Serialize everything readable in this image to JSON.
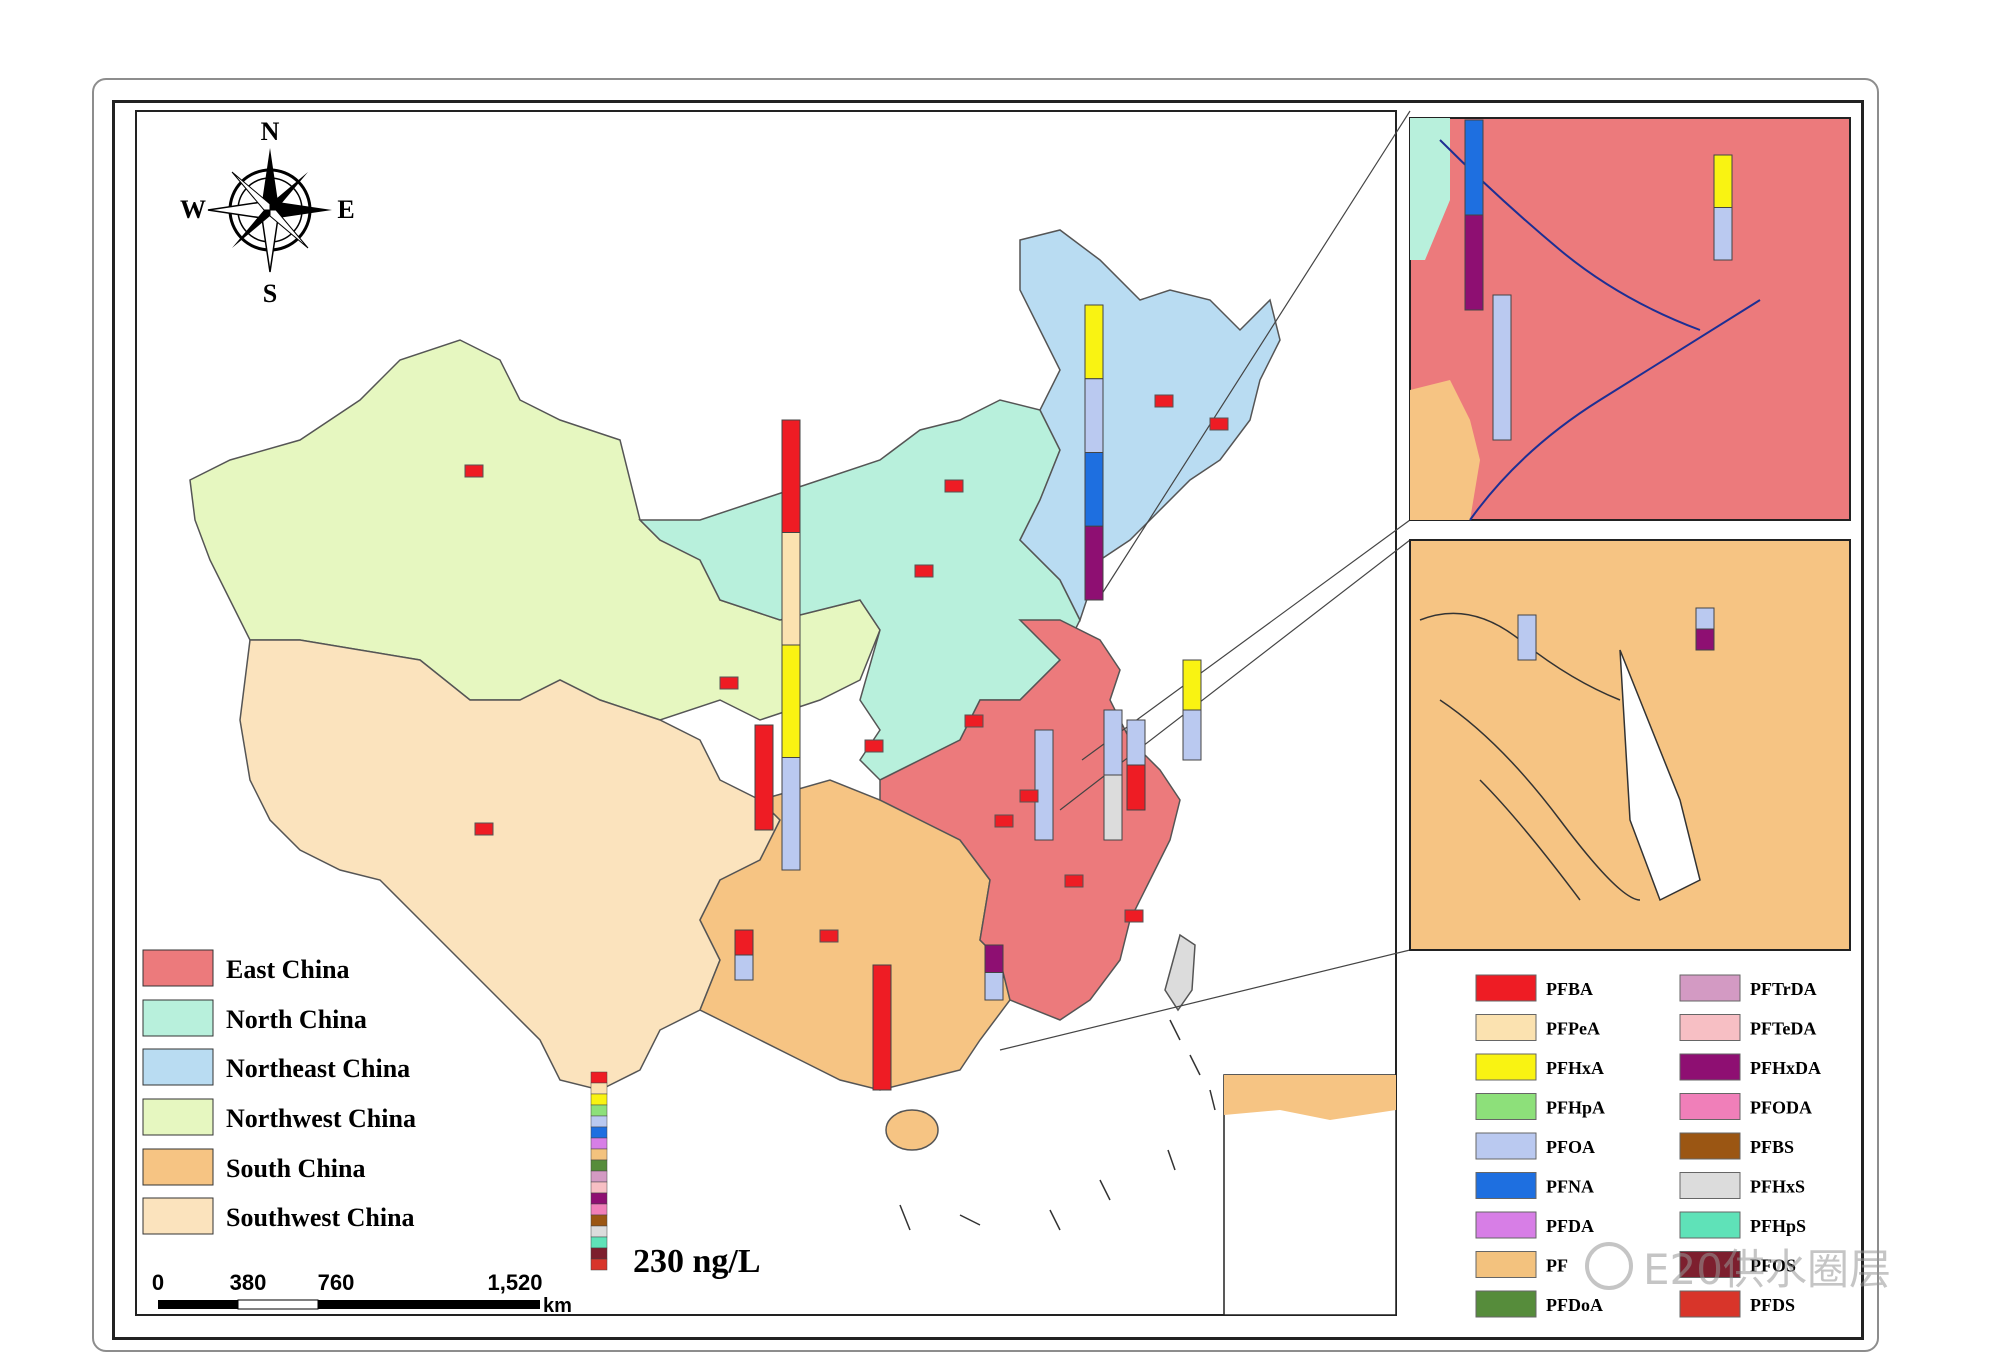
{
  "compass": {
    "n": "N",
    "s": "S",
    "e": "E",
    "w": "W"
  },
  "regions": [
    {
      "name": "East China",
      "color": "#ec7a7c"
    },
    {
      "name": "North China",
      "color": "#b8f0dc"
    },
    {
      "name": "Northeast China",
      "color": "#b9dcf2"
    },
    {
      "name": "Northwest China",
      "color": "#e6f7c0"
    },
    {
      "name": "South China",
      "color": "#f6c483"
    },
    {
      "name": "Southwest China",
      "color": "#fbe3bd"
    }
  ],
  "compounds_left": [
    {
      "name": "PFBA",
      "color": "#ee1c24"
    },
    {
      "name": "PFPeA",
      "color": "#fbe2b0"
    },
    {
      "name": "PFHxA",
      "color": "#f9f312"
    },
    {
      "name": "PFHpA",
      "color": "#8de07a"
    },
    {
      "name": "PFOA",
      "color": "#bac9f0"
    },
    {
      "name": "PFNA",
      "color": "#1e6fe0"
    },
    {
      "name": "PFDA",
      "color": "#d77ee6"
    },
    {
      "name": "PF",
      "color": "#f3c27e"
    },
    {
      "name": "PFDoA",
      "color": "#568c3b"
    }
  ],
  "compounds_right": [
    {
      "name": "PFTrDA",
      "color": "#d39ac3"
    },
    {
      "name": "PFTeDA",
      "color": "#f7bfc4"
    },
    {
      "name": "PFHxDA",
      "color": "#8e0f72"
    },
    {
      "name": "PFODA",
      "color": "#f07fb9"
    },
    {
      "name": "PFBS",
      "color": "#9b5613"
    },
    {
      "name": "PFHxS",
      "color": "#dcdcdc"
    },
    {
      "name": "PFHpS",
      "color": "#5fe2b8"
    },
    {
      "name": "PFOS",
      "color": "#7d1f2e"
    },
    {
      "name": "PFDS",
      "color": "#d8352a"
    }
  ],
  "scale_value_label": "230 ng/L",
  "scale_bar": {
    "ticks": [
      "0",
      "380",
      "760",
      "1,520"
    ],
    "unit": "km"
  },
  "watermark": "E20供水圈层"
}
